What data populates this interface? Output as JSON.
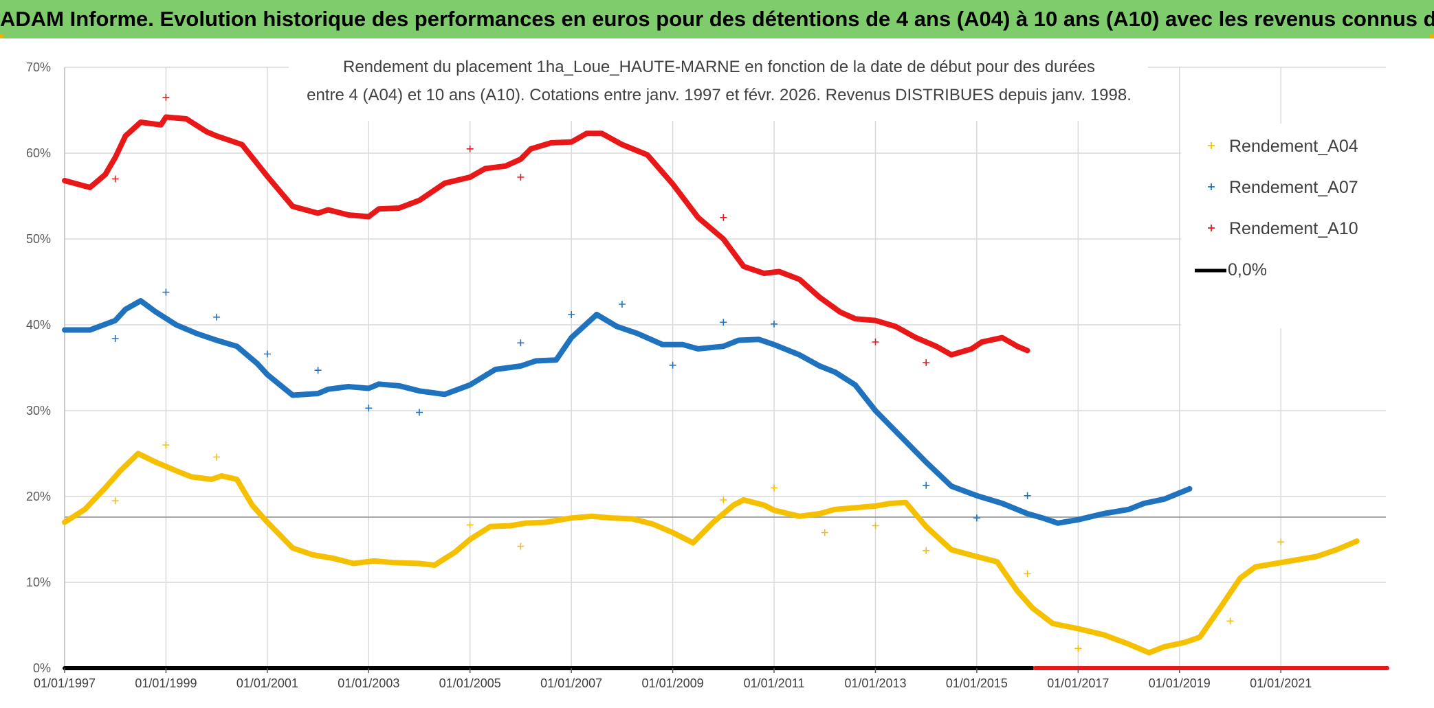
{
  "banner": {
    "title": "ADAM Informe. Evolution historique des performances en euros pour des détentions de 4 ans (A04) à 10 ans (A10) avec les revenus connus distribués"
  },
  "colors": {
    "A04": "#f5c000",
    "A07": "#1f72bd",
    "A10": "#e81818",
    "zero": "#000000",
    "grid": "#d9d9d9",
    "banner": "#7fcc6c"
  },
  "chart_data": {
    "type": "line",
    "title_lines": [
      "Rendement du placement 1ha_Loue_HAUTE-MARNE en fonction de la date de début pour des durées",
      "entre 4 (A04) et 10 ans (A10). Cotations entre janv. 1997 et févr. 2026. Revenus DISTRIBUES depuis janv. 1998."
    ],
    "x_range": [
      1997.0,
      2023.1
    ],
    "ylim": [
      0,
      70
    ],
    "y_ticks": [
      0,
      10,
      20,
      30,
      40,
      50,
      60,
      70
    ],
    "y_tick_labels": [
      "0%",
      "10%",
      "20%",
      "30%",
      "40%",
      "50%",
      "60%",
      "70%"
    ],
    "x_ticks": [
      1997,
      1999,
      2001,
      2003,
      2005,
      2007,
      2009,
      2011,
      2013,
      2015,
      2017,
      2019,
      2021
    ],
    "x_tick_labels": [
      "01/01/1997",
      "01/01/1999",
      "01/01/2001",
      "01/01/2003",
      "01/01/2005",
      "01/01/2007",
      "01/01/2009",
      "01/01/2011",
      "01/01/2013",
      "01/01/2015",
      "01/01/2017",
      "01/01/2019",
      "01/01/2021"
    ],
    "reference_line_y": 17.6,
    "legend": [
      {
        "key": "A04",
        "label": "Rendement_A04",
        "marker": "+"
      },
      {
        "key": "A07",
        "label": "Rendement_A07",
        "marker": "+"
      },
      {
        "key": "A10",
        "label": "Rendement_A10",
        "marker": "+"
      },
      {
        "key": "zero",
        "label": "0,0%",
        "marker": "line"
      }
    ],
    "series": [
      {
        "name": "Rendement_A04",
        "key": "A04",
        "points": [
          [
            1997.0,
            17.0
          ],
          [
            1997.4,
            18.5
          ],
          [
            1997.8,
            21.0
          ],
          [
            1998.1,
            23.0
          ],
          [
            1998.45,
            25.0
          ],
          [
            1998.8,
            24.0
          ],
          [
            1999.2,
            23.0
          ],
          [
            1999.5,
            22.3
          ],
          [
            1999.9,
            22.0
          ],
          [
            2000.1,
            22.4
          ],
          [
            2000.4,
            22.0
          ],
          [
            2000.7,
            19.0
          ],
          [
            2001.0,
            17.0
          ],
          [
            2001.5,
            14.0
          ],
          [
            2001.9,
            13.2
          ],
          [
            2002.3,
            12.8
          ],
          [
            2002.7,
            12.2
          ],
          [
            2003.1,
            12.5
          ],
          [
            2003.5,
            12.3
          ],
          [
            2004.0,
            12.2
          ],
          [
            2004.3,
            12.0
          ],
          [
            2004.7,
            13.5
          ],
          [
            2005.0,
            15.0
          ],
          [
            2005.4,
            16.5
          ],
          [
            2005.8,
            16.6
          ],
          [
            2006.1,
            16.9
          ],
          [
            2006.5,
            17.0
          ],
          [
            2007.0,
            17.5
          ],
          [
            2007.4,
            17.7
          ],
          [
            2007.8,
            17.5
          ],
          [
            2008.2,
            17.4
          ],
          [
            2008.6,
            16.8
          ],
          [
            2009.0,
            15.8
          ],
          [
            2009.4,
            14.6
          ],
          [
            2009.8,
            17.0
          ],
          [
            2010.2,
            19.0
          ],
          [
            2010.4,
            19.6
          ],
          [
            2010.8,
            19.0
          ],
          [
            2011.0,
            18.4
          ],
          [
            2011.5,
            17.7
          ],
          [
            2011.9,
            18.0
          ],
          [
            2012.2,
            18.5
          ],
          [
            2012.6,
            18.7
          ],
          [
            2013.0,
            18.9
          ],
          [
            2013.3,
            19.2
          ],
          [
            2013.6,
            19.3
          ],
          [
            2014.0,
            16.5
          ],
          [
            2014.5,
            13.8
          ],
          [
            2015.0,
            13.0
          ],
          [
            2015.4,
            12.4
          ],
          [
            2015.8,
            9.0
          ],
          [
            2016.1,
            7.0
          ],
          [
            2016.5,
            5.2
          ],
          [
            2017.0,
            4.6
          ],
          [
            2017.5,
            3.9
          ],
          [
            2018.0,
            2.8
          ],
          [
            2018.4,
            1.8
          ],
          [
            2018.7,
            2.5
          ],
          [
            2019.1,
            3.0
          ],
          [
            2019.4,
            3.6
          ],
          [
            2019.8,
            7.0
          ],
          [
            2020.2,
            10.5
          ],
          [
            2020.5,
            11.8
          ],
          [
            2020.9,
            12.2
          ],
          [
            2021.3,
            12.6
          ],
          [
            2021.7,
            13.0
          ],
          [
            2022.1,
            13.8
          ],
          [
            2022.5,
            14.8
          ]
        ],
        "outliers": [
          [
            1998.0,
            19.5
          ],
          [
            1999.0,
            26.0
          ],
          [
            2000.0,
            24.6
          ],
          [
            2005.0,
            16.7
          ],
          [
            2006.0,
            14.2
          ],
          [
            2010.0,
            19.6
          ],
          [
            2011.0,
            21.0
          ],
          [
            2012.0,
            15.8
          ],
          [
            2013.0,
            16.6
          ],
          [
            2014.0,
            13.7
          ],
          [
            2016.0,
            11.0
          ],
          [
            2017.0,
            2.3
          ],
          [
            2020.0,
            5.5
          ],
          [
            2021.0,
            14.7
          ]
        ]
      },
      {
        "name": "Rendement_A07",
        "key": "A07",
        "points": [
          [
            1997.0,
            39.4
          ],
          [
            1997.5,
            39.4
          ],
          [
            1998.0,
            40.5
          ],
          [
            1998.2,
            41.8
          ],
          [
            1998.5,
            42.8
          ],
          [
            1998.8,
            41.5
          ],
          [
            1999.2,
            40.0
          ],
          [
            1999.6,
            39.0
          ],
          [
            2000.0,
            38.2
          ],
          [
            2000.4,
            37.5
          ],
          [
            2000.8,
            35.5
          ],
          [
            2001.0,
            34.2
          ],
          [
            2001.5,
            31.8
          ],
          [
            2002.0,
            32.0
          ],
          [
            2002.2,
            32.5
          ],
          [
            2002.6,
            32.8
          ],
          [
            2003.0,
            32.6
          ],
          [
            2003.2,
            33.1
          ],
          [
            2003.6,
            32.9
          ],
          [
            2004.0,
            32.3
          ],
          [
            2004.5,
            31.9
          ],
          [
            2005.0,
            33.0
          ],
          [
            2005.5,
            34.8
          ],
          [
            2006.0,
            35.2
          ],
          [
            2006.3,
            35.8
          ],
          [
            2006.7,
            35.9
          ],
          [
            2007.0,
            38.5
          ],
          [
            2007.5,
            41.2
          ],
          [
            2007.9,
            39.8
          ],
          [
            2008.3,
            39.0
          ],
          [
            2008.8,
            37.7
          ],
          [
            2009.2,
            37.7
          ],
          [
            2009.5,
            37.2
          ],
          [
            2010.0,
            37.5
          ],
          [
            2010.3,
            38.2
          ],
          [
            2010.7,
            38.3
          ],
          [
            2011.0,
            37.7
          ],
          [
            2011.5,
            36.5
          ],
          [
            2011.9,
            35.2
          ],
          [
            2012.2,
            34.5
          ],
          [
            2012.6,
            33.0
          ],
          [
            2013.0,
            30.0
          ],
          [
            2013.5,
            27.0
          ],
          [
            2014.0,
            24.0
          ],
          [
            2014.5,
            21.2
          ],
          [
            2015.0,
            20.1
          ],
          [
            2015.5,
            19.2
          ],
          [
            2016.0,
            18.0
          ],
          [
            2016.3,
            17.5
          ],
          [
            2016.6,
            16.9
          ],
          [
            2017.0,
            17.3
          ],
          [
            2017.5,
            18.0
          ],
          [
            2018.0,
            18.5
          ],
          [
            2018.3,
            19.2
          ],
          [
            2018.7,
            19.7
          ],
          [
            2019.2,
            20.9
          ]
        ],
        "outliers": [
          [
            1998.0,
            38.4
          ],
          [
            1999.0,
            43.8
          ],
          [
            2000.0,
            40.9
          ],
          [
            2001.0,
            36.6
          ],
          [
            2002.0,
            34.7
          ],
          [
            2003.0,
            30.3
          ],
          [
            2004.0,
            29.8
          ],
          [
            2006.0,
            37.9
          ],
          [
            2007.0,
            41.2
          ],
          [
            2008.0,
            42.4
          ],
          [
            2009.0,
            35.3
          ],
          [
            2010.0,
            40.3
          ],
          [
            2011.0,
            40.1
          ],
          [
            2014.0,
            21.3
          ],
          [
            2015.0,
            17.5
          ],
          [
            2016.0,
            20.1
          ]
        ]
      },
      {
        "name": "Rendement_A10",
        "key": "A10",
        "points": [
          [
            1997.0,
            56.8
          ],
          [
            1997.5,
            56.0
          ],
          [
            1997.8,
            57.5
          ],
          [
            1998.0,
            59.5
          ],
          [
            1998.2,
            62.0
          ],
          [
            1998.5,
            63.6
          ],
          [
            1998.9,
            63.3
          ],
          [
            1999.0,
            64.2
          ],
          [
            1999.4,
            64.0
          ],
          [
            1999.8,
            62.5
          ],
          [
            2000.0,
            62.0
          ],
          [
            2000.5,
            61.0
          ],
          [
            2001.0,
            57.3
          ],
          [
            2001.5,
            53.8
          ],
          [
            2002.0,
            53.0
          ],
          [
            2002.2,
            53.4
          ],
          [
            2002.6,
            52.8
          ],
          [
            2003.0,
            52.6
          ],
          [
            2003.2,
            53.5
          ],
          [
            2003.6,
            53.6
          ],
          [
            2004.0,
            54.5
          ],
          [
            2004.5,
            56.5
          ],
          [
            2005.0,
            57.2
          ],
          [
            2005.3,
            58.2
          ],
          [
            2005.7,
            58.5
          ],
          [
            2006.0,
            59.3
          ],
          [
            2006.2,
            60.5
          ],
          [
            2006.6,
            61.2
          ],
          [
            2007.0,
            61.3
          ],
          [
            2007.3,
            62.3
          ],
          [
            2007.6,
            62.3
          ],
          [
            2008.0,
            61.0
          ],
          [
            2008.5,
            59.8
          ],
          [
            2009.0,
            56.4
          ],
          [
            2009.5,
            52.5
          ],
          [
            2010.0,
            50.0
          ],
          [
            2010.4,
            46.8
          ],
          [
            2010.8,
            46.0
          ],
          [
            2011.1,
            46.2
          ],
          [
            2011.5,
            45.3
          ],
          [
            2011.9,
            43.2
          ],
          [
            2012.3,
            41.5
          ],
          [
            2012.6,
            40.7
          ],
          [
            2013.0,
            40.5
          ],
          [
            2013.4,
            39.8
          ],
          [
            2013.8,
            38.5
          ],
          [
            2014.2,
            37.5
          ],
          [
            2014.5,
            36.5
          ],
          [
            2014.9,
            37.2
          ],
          [
            2015.1,
            38.0
          ],
          [
            2015.5,
            38.5
          ],
          [
            2015.8,
            37.5
          ],
          [
            2016.0,
            37.0
          ]
        ],
        "outliers": [
          [
            1998.0,
            57.0
          ],
          [
            1999.0,
            66.5
          ],
          [
            2005.0,
            60.5
          ],
          [
            2006.0,
            57.2
          ],
          [
            2010.0,
            52.5
          ],
          [
            2013.0,
            38.0
          ],
          [
            2014.0,
            35.6
          ]
        ]
      },
      {
        "name": "0,0%",
        "key": "zero",
        "points": [
          [
            1997.0,
            0.0
          ],
          [
            2016.1,
            0.0
          ]
        ]
      },
      {
        "name": "Rendement_A10 (0%)",
        "key": "A10",
        "points": [
          [
            2016.15,
            0.0
          ],
          [
            2023.1,
            0.0
          ]
        ]
      }
    ]
  }
}
